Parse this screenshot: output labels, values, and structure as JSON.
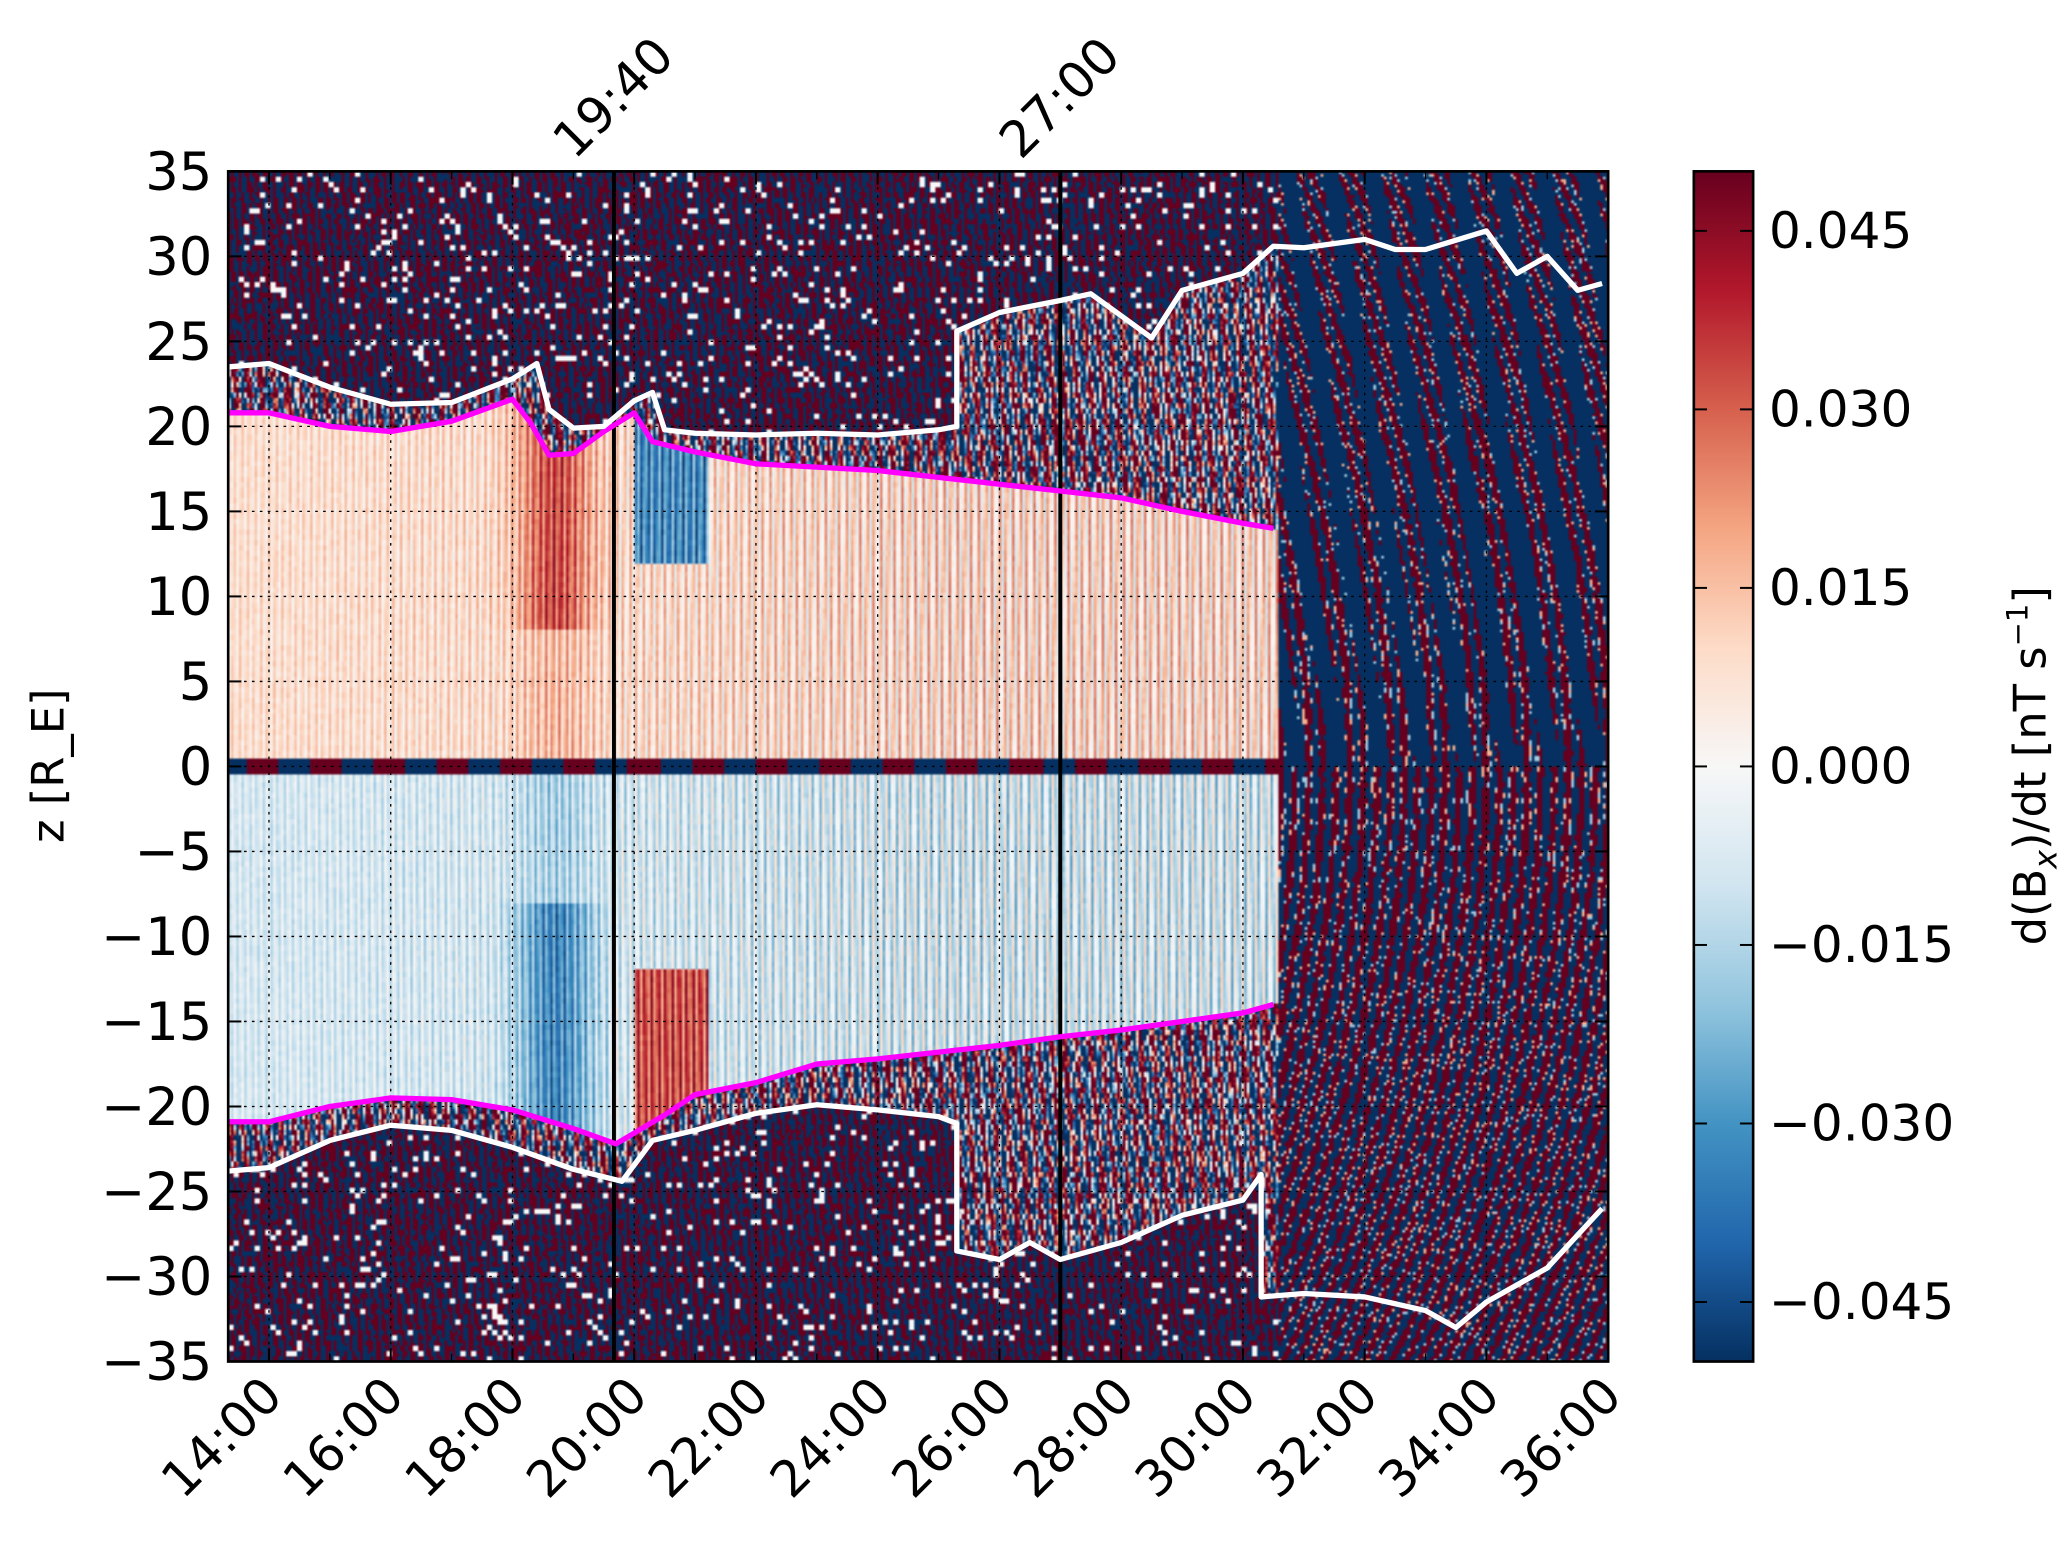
{
  "chart_data": {
    "type": "heatmap",
    "title": "",
    "xlabel": "",
    "ylabel": "z [R_E]",
    "ylabel_main": "z [R",
    "ylabel_sub": "E",
    "ylabel_end": "]",
    "xlim_hours": [
      13.33,
      36.0
    ],
    "ylim": [
      -35,
      35
    ],
    "x_ticks": [
      {
        "value": 14,
        "label": "14:00"
      },
      {
        "value": 16,
        "label": "16:00"
      },
      {
        "value": 18,
        "label": "18:00"
      },
      {
        "value": 20,
        "label": "20:00"
      },
      {
        "value": 22,
        "label": "22:00"
      },
      {
        "value": 24,
        "label": "24:00"
      },
      {
        "value": 26,
        "label": "26:00"
      },
      {
        "value": 28,
        "label": "28:00"
      },
      {
        "value": 30,
        "label": "30:00"
      },
      {
        "value": 32,
        "label": "32:00"
      },
      {
        "value": 34,
        "label": "34:00"
      },
      {
        "value": 36,
        "label": "36:00"
      }
    ],
    "y_ticks": [
      {
        "value": 35,
        "label": "35"
      },
      {
        "value": 30,
        "label": "30"
      },
      {
        "value": 25,
        "label": "25"
      },
      {
        "value": 20,
        "label": "20"
      },
      {
        "value": 15,
        "label": "15"
      },
      {
        "value": 10,
        "label": "10"
      },
      {
        "value": 5,
        "label": "5"
      },
      {
        "value": 0,
        "label": "0"
      },
      {
        "value": -5,
        "label": "−5"
      },
      {
        "value": -10,
        "label": "−10"
      },
      {
        "value": -15,
        "label": "−15"
      },
      {
        "value": -20,
        "label": "−20"
      },
      {
        "value": -25,
        "label": "−25"
      },
      {
        "value": -30,
        "label": "−30"
      },
      {
        "value": -35,
        "label": "−35"
      }
    ],
    "markers": [
      {
        "value": 19.667,
        "label": "19:40"
      },
      {
        "value": 27.0,
        "label": "27:00"
      }
    ],
    "colorbar": {
      "label_main": "d(B",
      "label_sub": "x",
      "label_mid": ")/dt [nT s",
      "label_sup": "−1",
      "label_end": "]",
      "range": [
        -0.05,
        0.05
      ],
      "colormap": "RdBu_r",
      "ticks": [
        {
          "value": 0.045,
          "label": "0.045"
        },
        {
          "value": 0.03,
          "label": "0.030"
        },
        {
          "value": 0.015,
          "label": "0.015"
        },
        {
          "value": 0.0,
          "label": "0.000"
        },
        {
          "value": -0.015,
          "label": "−0.015"
        },
        {
          "value": -0.03,
          "label": "−0.030"
        },
        {
          "value": -0.045,
          "label": "−0.045"
        }
      ]
    },
    "series": [
      {
        "name": "magenta-upper",
        "color": "#ff00ff",
        "points": [
          [
            13.33,
            20.8
          ],
          [
            14,
            20.8
          ],
          [
            15,
            20.0
          ],
          [
            16,
            19.7
          ],
          [
            17,
            20.3
          ],
          [
            18,
            21.6
          ],
          [
            18.3,
            20.2
          ],
          [
            18.6,
            18.3
          ],
          [
            19,
            18.4
          ],
          [
            19.5,
            19.7
          ],
          [
            20,
            20.8
          ],
          [
            20.3,
            19.1
          ],
          [
            21,
            18.5
          ],
          [
            22,
            17.8
          ],
          [
            24,
            17.4
          ],
          [
            26,
            16.6
          ],
          [
            27,
            16.2
          ],
          [
            28,
            15.8
          ],
          [
            29,
            15.0
          ],
          [
            30,
            14.3
          ],
          [
            30.5,
            14.0
          ]
        ]
      },
      {
        "name": "magenta-lower",
        "color": "#ff00ff",
        "points": [
          [
            13.33,
            -20.9
          ],
          [
            14,
            -20.9
          ],
          [
            15,
            -20.0
          ],
          [
            16,
            -19.5
          ],
          [
            17,
            -19.6
          ],
          [
            18,
            -20.2
          ],
          [
            19,
            -21.3
          ],
          [
            19.7,
            -22.2
          ],
          [
            20.5,
            -20.5
          ],
          [
            21,
            -19.3
          ],
          [
            22,
            -18.6
          ],
          [
            23,
            -17.5
          ],
          [
            24,
            -17.2
          ],
          [
            26,
            -16.4
          ],
          [
            27,
            -15.9
          ],
          [
            28,
            -15.5
          ],
          [
            29,
            -15.0
          ],
          [
            30,
            -14.5
          ],
          [
            30.5,
            -14.0
          ]
        ]
      },
      {
        "name": "white-upper",
        "color": "#ffffff",
        "points": [
          [
            13.33,
            23.5
          ],
          [
            14,
            23.7
          ],
          [
            15,
            22.3
          ],
          [
            16,
            21.3
          ],
          [
            17,
            21.4
          ],
          [
            18,
            22.8
          ],
          [
            18.4,
            23.7
          ],
          [
            18.6,
            21.0
          ],
          [
            19,
            19.9
          ],
          [
            19.5,
            20.0
          ],
          [
            20,
            21.5
          ],
          [
            20.3,
            22.0
          ],
          [
            20.5,
            19.8
          ],
          [
            21,
            19.6
          ],
          [
            22,
            19.5
          ],
          [
            23,
            19.6
          ],
          [
            24,
            19.5
          ],
          [
            25,
            19.8
          ],
          [
            25.3,
            20.0
          ],
          [
            25.3,
            25.6
          ],
          [
            26,
            26.7
          ],
          [
            27,
            27.4
          ],
          [
            27.5,
            27.8
          ],
          [
            28,
            26.5
          ],
          [
            28.5,
            25.2
          ],
          [
            29,
            28.0
          ],
          [
            30,
            29.0
          ],
          [
            30.5,
            30.6
          ],
          [
            31,
            30.5
          ],
          [
            32,
            31.0
          ],
          [
            32.5,
            30.4
          ],
          [
            33,
            30.4
          ],
          [
            34,
            31.5
          ],
          [
            34.5,
            29.0
          ],
          [
            35,
            30.0
          ],
          [
            35.5,
            28.0
          ],
          [
            35.9,
            28.4
          ]
        ]
      },
      {
        "name": "white-lower",
        "color": "#ffffff",
        "points": [
          [
            13.33,
            -23.8
          ],
          [
            14,
            -23.6
          ],
          [
            15,
            -22.0
          ],
          [
            16,
            -21.1
          ],
          [
            17,
            -21.4
          ],
          [
            18,
            -22.4
          ],
          [
            19,
            -23.7
          ],
          [
            19.8,
            -24.4
          ],
          [
            20.3,
            -22.0
          ],
          [
            21,
            -21.4
          ],
          [
            22,
            -20.4
          ],
          [
            23,
            -19.9
          ],
          [
            24,
            -20.2
          ],
          [
            25,
            -20.6
          ],
          [
            25.3,
            -21.0
          ],
          [
            25.3,
            -28.5
          ],
          [
            26,
            -29.0
          ],
          [
            26.5,
            -28.0
          ],
          [
            27,
            -29.0
          ],
          [
            28,
            -28.0
          ],
          [
            29,
            -26.4
          ],
          [
            30,
            -25.5
          ],
          [
            30.3,
            -24.0
          ],
          [
            30.3,
            -31.2
          ],
          [
            31,
            -31.0
          ],
          [
            32,
            -31.2
          ],
          [
            33,
            -32.0
          ],
          [
            33.5,
            -33.0
          ],
          [
            34,
            -31.5
          ],
          [
            35,
            -29.5
          ],
          [
            35.9,
            -26.0
          ]
        ]
      }
    ]
  }
}
